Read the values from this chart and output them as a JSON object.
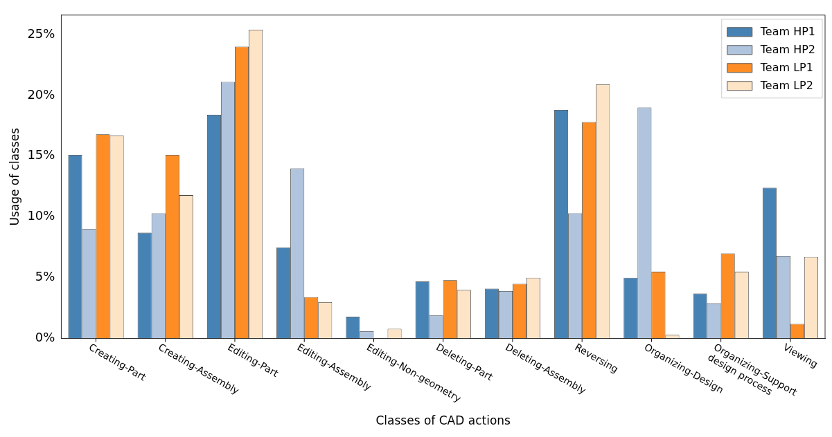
{
  "chart_data": {
    "type": "bar",
    "xlabel": "Classes of CAD actions",
    "ylabel": "Usage of classes",
    "categories": [
      "Creating-Part",
      "Creating-Assembly",
      "Editing-Part",
      "Editing-Assembly",
      "Editing-Non-geometry",
      "Deleting-Part",
      "Deleting-Assembly",
      "Reversing",
      "Organizing-Design",
      "Organizing-Support\ndesign process",
      "Viewing"
    ],
    "series": [
      {
        "name": "Team HP1",
        "color": "#4682b4",
        "values": [
          15.1,
          8.7,
          18.4,
          7.5,
          1.8,
          4.7,
          4.1,
          18.8,
          5.0,
          3.7,
          12.4
        ]
      },
      {
        "name": "Team HP2",
        "color": "#b0c4de",
        "values": [
          9.0,
          10.3,
          21.1,
          14.0,
          0.6,
          1.9,
          3.9,
          10.3,
          19.0,
          2.9,
          6.8
        ]
      },
      {
        "name": "Team LP1",
        "color": "#fd8d24",
        "values": [
          16.8,
          15.1,
          24.0,
          3.4,
          null,
          4.8,
          4.5,
          17.8,
          5.5,
          7.0,
          1.2
        ]
      },
      {
        "name": "Team LP2",
        "color": "#fde4c6",
        "values": [
          16.7,
          11.8,
          25.4,
          3.0,
          0.8,
          4.0,
          5.0,
          20.9,
          0.3,
          5.5,
          6.7
        ]
      }
    ],
    "ylim": [
      0,
      26.6
    ],
    "yticks": [
      {
        "value": 0,
        "label": "0%"
      },
      {
        "value": 5,
        "label": "5%"
      },
      {
        "value": 10,
        "label": "10%"
      },
      {
        "value": 15,
        "label": "15%"
      },
      {
        "value": 20,
        "label": "20%"
      },
      {
        "value": 25,
        "label": "25%"
      }
    ],
    "legend": "top right",
    "grid": false
  }
}
